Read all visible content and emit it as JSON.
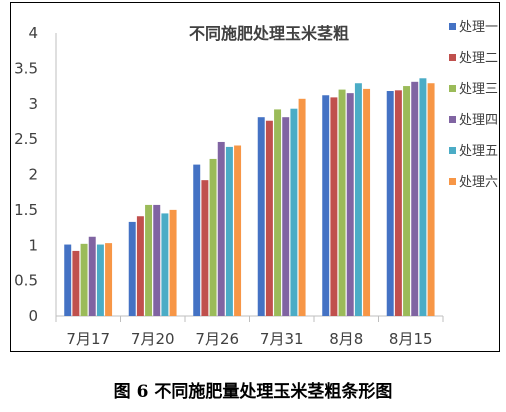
{
  "caption": "图 6  不同施肥量处理玉米茎粗条形图",
  "chart_data": {
    "type": "bar",
    "title": "不同施肥处理玉米茎粗",
    "xlabel": "",
    "ylabel": "",
    "categories": [
      "7月17",
      "7月20",
      "7月26",
      "7月31",
      "8月8",
      "8月15"
    ],
    "ylim": [
      0,
      4
    ],
    "yticks": [
      "0",
      "0.5",
      "1",
      "1.5",
      "2",
      "2.5",
      "3",
      "3.5",
      "4"
    ],
    "grid": false,
    "legend_position": "right",
    "series": [
      {
        "name": "处理一",
        "color": "#4472C4",
        "values": [
          1.01,
          1.33,
          2.14,
          2.81,
          3.12,
          3.18
        ]
      },
      {
        "name": "处理二",
        "color": "#C0504D",
        "values": [
          0.92,
          1.41,
          1.92,
          2.76,
          3.09,
          3.19
        ]
      },
      {
        "name": "处理三",
        "color": "#9BBB59",
        "values": [
          1.02,
          1.57,
          2.22,
          2.92,
          3.2,
          3.25
        ]
      },
      {
        "name": "处理四",
        "color": "#8064A2",
        "values": [
          1.12,
          1.57,
          2.46,
          2.81,
          3.15,
          3.31
        ]
      },
      {
        "name": "处理五",
        "color": "#4BACC6",
        "values": [
          1.01,
          1.45,
          2.39,
          2.93,
          3.29,
          3.36
        ]
      },
      {
        "name": "处理六",
        "color": "#F79646",
        "values": [
          1.03,
          1.5,
          2.41,
          3.07,
          3.21,
          3.29
        ]
      }
    ]
  }
}
